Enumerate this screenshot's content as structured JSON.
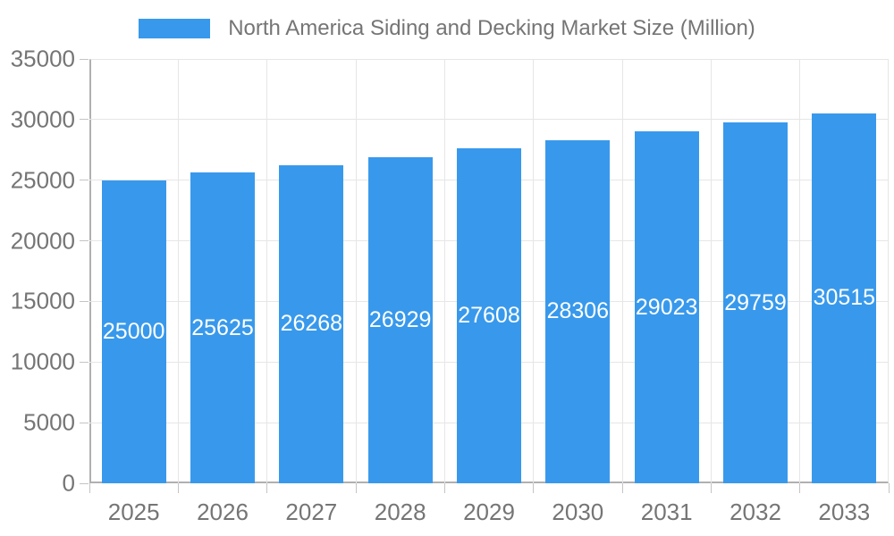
{
  "legend": {
    "label": "North America Siding and Decking Market Size (Million)"
  },
  "chart_data": {
    "type": "bar",
    "title": "North America Siding and Decking Market Size (Million)",
    "categories": [
      "2025",
      "2026",
      "2027",
      "2028",
      "2029",
      "2030",
      "2031",
      "2032",
      "2033"
    ],
    "values": [
      25000,
      25625,
      26268,
      26929,
      27608,
      28306,
      29023,
      29759,
      30515
    ],
    "xlabel": "",
    "ylabel": "",
    "ylim": [
      0,
      35000
    ],
    "yticks": [
      0,
      5000,
      10000,
      15000,
      20000,
      25000,
      30000,
      35000
    ],
    "grid": true,
    "legend_position": "top",
    "bar_color": "#3899EC",
    "bar_label_color": "#ffffff",
    "axis_text_color": "#757575",
    "gridline_color": "#e6e6e6",
    "axis_line_color": "#b0b0b0",
    "background_color": "#ffffff"
  }
}
